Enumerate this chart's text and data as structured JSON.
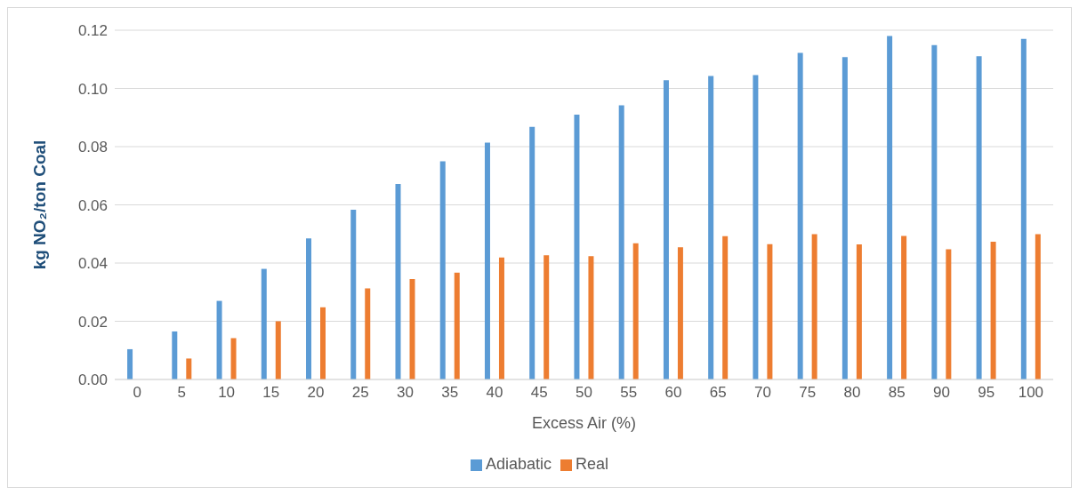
{
  "chart_data": {
    "type": "bar",
    "xlabel": "Excess Air (%)",
    "ylabel": "kg NO₂/ton Coal",
    "categories": [
      "0",
      "5",
      "10",
      "15",
      "20",
      "25",
      "30",
      "35",
      "40",
      "45",
      "50",
      "55",
      "60",
      "65",
      "70",
      "75",
      "80",
      "85",
      "90",
      "95",
      "100"
    ],
    "series": [
      {
        "name": "Adiabatic",
        "color": "#5b9bd5",
        "values": [
          0.0104,
          0.0165,
          0.027,
          0.038,
          0.0485,
          0.0583,
          0.0672,
          0.075,
          0.0814,
          0.0868,
          0.091,
          0.0942,
          0.1028,
          0.1043,
          0.1046,
          0.1122,
          0.1108,
          0.118,
          0.1149,
          0.1111,
          0.117
        ]
      },
      {
        "name": "Real",
        "color": "#ed7d31",
        "values": [
          null,
          0.0072,
          0.0142,
          0.02,
          0.0248,
          0.0313,
          0.0345,
          0.0367,
          0.0419,
          0.0427,
          0.0424,
          0.0468,
          0.0454,
          0.0492,
          0.0465,
          0.0499,
          0.0464,
          0.0493,
          0.0447,
          0.0473,
          0.0499
        ]
      }
    ],
    "ylim": [
      0,
      0.12
    ],
    "yticks": [
      {
        "value": 0,
        "label": "0.00"
      },
      {
        "value": 0.02,
        "label": "0.02"
      },
      {
        "value": 0.04,
        "label": "0.04"
      },
      {
        "value": 0.06,
        "label": "0.06"
      },
      {
        "value": 0.08,
        "label": "0.08"
      },
      {
        "value": 0.1,
        "label": "0.10"
      },
      {
        "value": 0.12,
        "label": "0.12"
      }
    ],
    "grid": "y",
    "legend": "bottom"
  }
}
